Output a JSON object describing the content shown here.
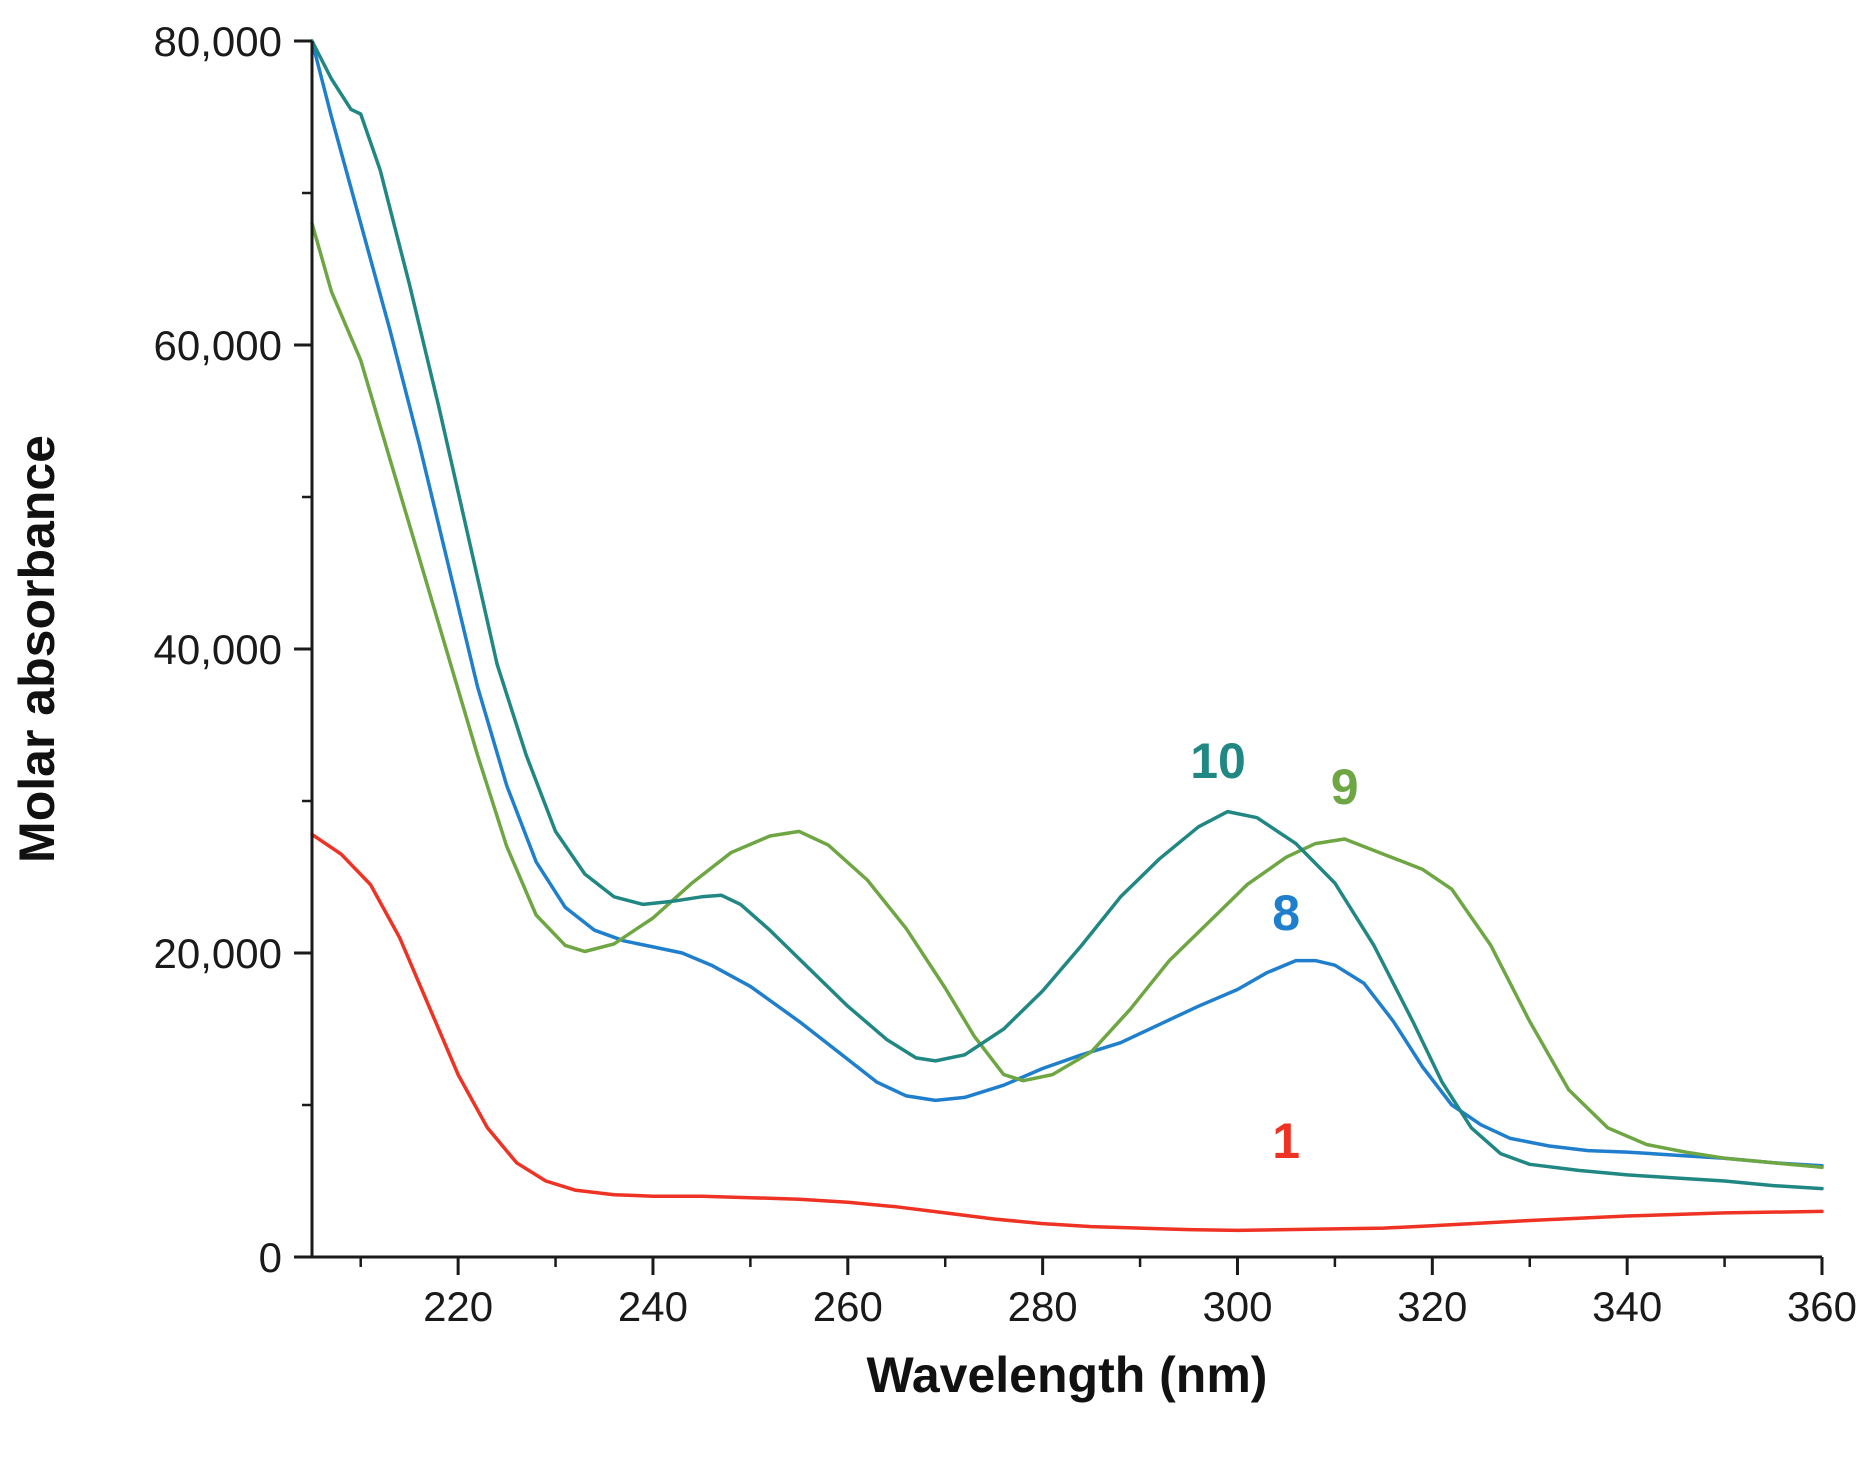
{
  "chart_data": {
    "type": "line",
    "title": "",
    "xlabel": "Wavelength (nm)",
    "ylabel": "Molar absorbance",
    "xlim": [
      205,
      360
    ],
    "ylim": [
      0,
      80000
    ],
    "x_ticks": [
      220,
      240,
      260,
      280,
      300,
      320,
      340,
      360
    ],
    "x_tick_labels": [
      "220",
      "240",
      "260",
      "280",
      "300",
      "320",
      "340",
      "360"
    ],
    "y_ticks": [
      0,
      20000,
      40000,
      60000,
      80000
    ],
    "y_tick_labels": [
      "0",
      "20,000",
      "40,000",
      "60,000",
      "80,000"
    ],
    "grid": false,
    "legend": "inline labels",
    "series": [
      {
        "name": "1",
        "color": "#ee3224",
        "label_at": [
          305,
          6500
        ],
        "points": [
          [
            205,
            27800
          ],
          [
            208,
            26500
          ],
          [
            211,
            24500
          ],
          [
            214,
            21000
          ],
          [
            217,
            16500
          ],
          [
            220,
            12000
          ],
          [
            223,
            8500
          ],
          [
            226,
            6200
          ],
          [
            229,
            5000
          ],
          [
            232,
            4400
          ],
          [
            236,
            4100
          ],
          [
            240,
            4000
          ],
          [
            245,
            4000
          ],
          [
            250,
            3900
          ],
          [
            255,
            3800
          ],
          [
            260,
            3600
          ],
          [
            265,
            3300
          ],
          [
            270,
            2900
          ],
          [
            275,
            2500
          ],
          [
            280,
            2200
          ],
          [
            285,
            2000
          ],
          [
            290,
            1900
          ],
          [
            295,
            1800
          ],
          [
            300,
            1750
          ],
          [
            305,
            1800
          ],
          [
            310,
            1850
          ],
          [
            315,
            1900
          ],
          [
            320,
            2050
          ],
          [
            330,
            2400
          ],
          [
            340,
            2700
          ],
          [
            350,
            2900
          ],
          [
            360,
            3000
          ]
        ]
      },
      {
        "name": "8",
        "color": "#1f7fcc",
        "label_at": [
          305,
          21500
        ],
        "points": [
          [
            205,
            80000
          ],
          [
            207,
            75000
          ],
          [
            210,
            68000
          ],
          [
            213,
            61000
          ],
          [
            216,
            53500
          ],
          [
            219,
            45500
          ],
          [
            222,
            37500
          ],
          [
            225,
            31000
          ],
          [
            228,
            26000
          ],
          [
            231,
            23000
          ],
          [
            234,
            21500
          ],
          [
            237,
            20800
          ],
          [
            240,
            20400
          ],
          [
            243,
            20000
          ],
          [
            246,
            19200
          ],
          [
            250,
            17800
          ],
          [
            255,
            15500
          ],
          [
            260,
            13000
          ],
          [
            263,
            11500
          ],
          [
            266,
            10600
          ],
          [
            269,
            10300
          ],
          [
            272,
            10500
          ],
          [
            276,
            11300
          ],
          [
            280,
            12400
          ],
          [
            284,
            13300
          ],
          [
            288,
            14100
          ],
          [
            292,
            15300
          ],
          [
            296,
            16500
          ],
          [
            300,
            17600
          ],
          [
            303,
            18700
          ],
          [
            306,
            19500
          ],
          [
            308,
            19500
          ],
          [
            310,
            19200
          ],
          [
            313,
            18000
          ],
          [
            316,
            15500
          ],
          [
            319,
            12500
          ],
          [
            322,
            10000
          ],
          [
            325,
            8700
          ],
          [
            328,
            7800
          ],
          [
            332,
            7300
          ],
          [
            336,
            7000
          ],
          [
            340,
            6900
          ],
          [
            345,
            6700
          ],
          [
            350,
            6500
          ],
          [
            355,
            6200
          ],
          [
            360,
            6000
          ]
        ]
      },
      {
        "name": "9",
        "color": "#6fa644",
        "label_at": [
          311,
          29800
        ],
        "points": [
          [
            205,
            68000
          ],
          [
            207,
            63500
          ],
          [
            210,
            59000
          ],
          [
            213,
            52500
          ],
          [
            216,
            46000
          ],
          [
            219,
            39500
          ],
          [
            222,
            33000
          ],
          [
            225,
            27000
          ],
          [
            228,
            22500
          ],
          [
            231,
            20500
          ],
          [
            233,
            20100
          ],
          [
            236,
            20600
          ],
          [
            240,
            22300
          ],
          [
            244,
            24600
          ],
          [
            248,
            26600
          ],
          [
            252,
            27700
          ],
          [
            255,
            28000
          ],
          [
            258,
            27100
          ],
          [
            262,
            24800
          ],
          [
            266,
            21600
          ],
          [
            270,
            17700
          ],
          [
            273,
            14500
          ],
          [
            276,
            12000
          ],
          [
            278,
            11600
          ],
          [
            281,
            12000
          ],
          [
            285,
            13500
          ],
          [
            289,
            16300
          ],
          [
            293,
            19500
          ],
          [
            297,
            22000
          ],
          [
            301,
            24500
          ],
          [
            305,
            26300
          ],
          [
            308,
            27200
          ],
          [
            311,
            27500
          ],
          [
            315,
            26500
          ],
          [
            319,
            25500
          ],
          [
            322,
            24200
          ],
          [
            326,
            20500
          ],
          [
            330,
            15500
          ],
          [
            334,
            11000
          ],
          [
            338,
            8500
          ],
          [
            342,
            7400
          ],
          [
            346,
            6900
          ],
          [
            350,
            6500
          ],
          [
            355,
            6200
          ],
          [
            360,
            5900
          ]
        ]
      },
      {
        "name": "10",
        "color": "#218783",
        "label_at": [
          298,
          31500
        ],
        "points": [
          [
            205,
            80000
          ],
          [
            207,
            77500
          ],
          [
            209,
            75500
          ],
          [
            210,
            75200
          ],
          [
            212,
            71500
          ],
          [
            215,
            64000
          ],
          [
            218,
            56000
          ],
          [
            221,
            47500
          ],
          [
            224,
            39000
          ],
          [
            227,
            33000
          ],
          [
            230,
            28000
          ],
          [
            233,
            25200
          ],
          [
            236,
            23700
          ],
          [
            239,
            23200
          ],
          [
            242,
            23400
          ],
          [
            245,
            23700
          ],
          [
            247,
            23800
          ],
          [
            249,
            23200
          ],
          [
            252,
            21500
          ],
          [
            256,
            19000
          ],
          [
            260,
            16500
          ],
          [
            264,
            14300
          ],
          [
            267,
            13100
          ],
          [
            269,
            12900
          ],
          [
            272,
            13300
          ],
          [
            276,
            15000
          ],
          [
            280,
            17500
          ],
          [
            284,
            20500
          ],
          [
            288,
            23700
          ],
          [
            292,
            26200
          ],
          [
            296,
            28300
          ],
          [
            299,
            29300
          ],
          [
            302,
            28900
          ],
          [
            306,
            27200
          ],
          [
            310,
            24600
          ],
          [
            314,
            20500
          ],
          [
            318,
            15500
          ],
          [
            321,
            11500
          ],
          [
            324,
            8500
          ],
          [
            327,
            6800
          ],
          [
            330,
            6100
          ],
          [
            335,
            5700
          ],
          [
            340,
            5400
          ],
          [
            345,
            5200
          ],
          [
            350,
            5000
          ],
          [
            355,
            4700
          ],
          [
            360,
            4500
          ]
        ]
      }
    ]
  }
}
